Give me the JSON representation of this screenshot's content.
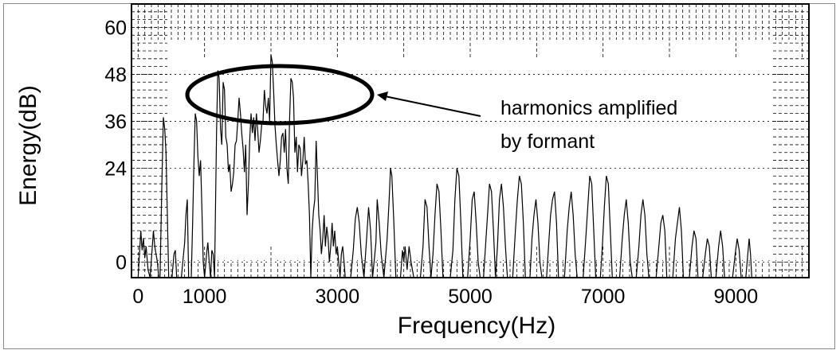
{
  "chart_data": {
    "type": "line",
    "xlabel": "Frequency(Hz)",
    "ylabel": "Energy(dB)",
    "xlim": [
      -100,
      10100
    ],
    "ylim": [
      -4,
      66
    ],
    "x_ticks": [
      0,
      1000,
      3000,
      5000,
      7000,
      9000
    ],
    "x_tick_labels": [
      "0",
      "1000",
      "3000",
      "5000",
      "7000",
      "9000"
    ],
    "y_ticks": [
      0,
      24,
      36,
      48,
      60
    ],
    "y_tick_labels": [
      "0",
      "24",
      "36",
      "48",
      "60"
    ],
    "grid": "partial dashed ticks",
    "annotation": {
      "lines": [
        "harmonics amplified",
        "by formant"
      ],
      "points_to": "formant harmonic peaks near 48 dB"
    },
    "series": [
      {
        "values": [
          [
            0,
            -4
          ],
          [
            20,
            2
          ],
          [
            40,
            8
          ],
          [
            60,
            3
          ],
          [
            80,
            6
          ],
          [
            100,
            1
          ],
          [
            120,
            4
          ],
          [
            150,
            -2
          ],
          [
            180,
            -4
          ],
          [
            210,
            3
          ],
          [
            230,
            8
          ],
          [
            250,
            4
          ],
          [
            270,
            2
          ],
          [
            290,
            0
          ],
          [
            310,
            -4
          ],
          [
            330,
            -4
          ],
          [
            360,
            22
          ],
          [
            380,
            37
          ],
          [
            400,
            34
          ],
          [
            420,
            28
          ],
          [
            440,
            12
          ],
          [
            460,
            -4
          ],
          [
            510,
            -4
          ],
          [
            540,
            2
          ],
          [
            560,
            3
          ],
          [
            580,
            -4
          ],
          [
            650,
            -4
          ],
          [
            700,
            5
          ],
          [
            720,
            12
          ],
          [
            740,
            16
          ],
          [
            760,
            -4
          ],
          [
            800,
            -4
          ],
          [
            820,
            10
          ],
          [
            840,
            25
          ],
          [
            860,
            38
          ],
          [
            880,
            36
          ],
          [
            900,
            27
          ],
          [
            920,
            22
          ],
          [
            940,
            26
          ],
          [
            960,
            14
          ],
          [
            980,
            0
          ],
          [
            1000,
            -4
          ],
          [
            1030,
            2
          ],
          [
            1050,
            5
          ],
          [
            1070,
            0
          ],
          [
            1090,
            -4
          ],
          [
            1110,
            3
          ],
          [
            1130,
            2
          ],
          [
            1150,
            -4
          ],
          [
            1160,
            8
          ],
          [
            1180,
            33
          ],
          [
            1200,
            49
          ],
          [
            1220,
            47
          ],
          [
            1240,
            34
          ],
          [
            1260,
            30
          ],
          [
            1280,
            46
          ],
          [
            1300,
            44
          ],
          [
            1320,
            32
          ],
          [
            1340,
            30
          ],
          [
            1360,
            23
          ],
          [
            1380,
            25
          ],
          [
            1400,
            18
          ],
          [
            1420,
            20
          ],
          [
            1440,
            23
          ],
          [
            1460,
            30
          ],
          [
            1480,
            31
          ],
          [
            1500,
            36
          ],
          [
            1520,
            42
          ],
          [
            1540,
            38
          ],
          [
            1560,
            33
          ],
          [
            1580,
            29
          ],
          [
            1600,
            23
          ],
          [
            1620,
            30
          ],
          [
            1640,
            12
          ],
          [
            1660,
            20
          ],
          [
            1680,
            31
          ],
          [
            1700,
            38
          ],
          [
            1720,
            33
          ],
          [
            1740,
            37
          ],
          [
            1760,
            31
          ],
          [
            1780,
            38
          ],
          [
            1800,
            34
          ],
          [
            1820,
            28
          ],
          [
            1840,
            31
          ],
          [
            1860,
            35
          ],
          [
            1880,
            36
          ],
          [
            1900,
            44
          ],
          [
            1920,
            40
          ],
          [
            1940,
            38
          ],
          [
            1960,
            42
          ],
          [
            1980,
            36
          ],
          [
            2000,
            53
          ],
          [
            2020,
            51
          ],
          [
            2040,
            44
          ],
          [
            2060,
            35
          ],
          [
            2080,
            30
          ],
          [
            2100,
            26
          ],
          [
            2120,
            22
          ],
          [
            2140,
            26
          ],
          [
            2160,
            32
          ],
          [
            2180,
            33
          ],
          [
            2200,
            28
          ],
          [
            2220,
            34
          ],
          [
            2240,
            24
          ],
          [
            2260,
            20
          ],
          [
            2280,
            36
          ],
          [
            2300,
            47
          ],
          [
            2320,
            46
          ],
          [
            2340,
            42
          ],
          [
            2360,
            28
          ],
          [
            2380,
            32
          ],
          [
            2400,
            23
          ],
          [
            2420,
            30
          ],
          [
            2440,
            29
          ],
          [
            2460,
            22
          ],
          [
            2480,
            26
          ],
          [
            2500,
            32
          ],
          [
            2520,
            25
          ],
          [
            2540,
            26
          ],
          [
            2560,
            20
          ],
          [
            2580,
            12
          ],
          [
            2600,
            -4
          ],
          [
            2620,
            8
          ],
          [
            2640,
            13
          ],
          [
            2660,
            16
          ],
          [
            2680,
            31
          ],
          [
            2700,
            22
          ],
          [
            2720,
            12
          ],
          [
            2740,
            8
          ],
          [
            2760,
            2
          ],
          [
            2780,
            6
          ],
          [
            2800,
            12
          ],
          [
            2820,
            4
          ],
          [
            2840,
            9
          ],
          [
            2860,
            6
          ],
          [
            2880,
            0
          ],
          [
            2900,
            4
          ],
          [
            2920,
            10
          ],
          [
            2940,
            4
          ],
          [
            2960,
            8
          ],
          [
            2980,
            2
          ],
          [
            3000,
            4
          ],
          [
            3020,
            0
          ],
          [
            3040,
            -4
          ],
          [
            3060,
            2
          ],
          [
            3080,
            4
          ],
          [
            3100,
            0
          ],
          [
            3120,
            -4
          ],
          [
            3200,
            -4
          ],
          [
            3240,
            3
          ],
          [
            3270,
            11
          ],
          [
            3300,
            14
          ],
          [
            3330,
            10
          ],
          [
            3360,
            2
          ],
          [
            3400,
            -4
          ],
          [
            3440,
            6
          ],
          [
            3470,
            14
          ],
          [
            3500,
            8
          ],
          [
            3530,
            -4
          ],
          [
            3580,
            5
          ],
          [
            3600,
            16
          ],
          [
            3630,
            10
          ],
          [
            3660,
            2
          ],
          [
            3700,
            -4
          ],
          [
            3750,
            6
          ],
          [
            3780,
            16
          ],
          [
            3800,
            24
          ],
          [
            3820,
            22
          ],
          [
            3850,
            10
          ],
          [
            3880,
            -4
          ],
          [
            3950,
            -4
          ],
          [
            3980,
            3
          ],
          [
            4000,
            0
          ],
          [
            4020,
            4
          ],
          [
            4050,
            -2
          ],
          [
            4080,
            4
          ],
          [
            4110,
            0
          ],
          [
            4150,
            -4
          ],
          [
            4250,
            -4
          ],
          [
            4290,
            4
          ],
          [
            4320,
            16
          ],
          [
            4350,
            14
          ],
          [
            4380,
            4
          ],
          [
            4410,
            -4
          ],
          [
            4440,
            2
          ],
          [
            4470,
            12
          ],
          [
            4500,
            20
          ],
          [
            4530,
            18
          ],
          [
            4560,
            8
          ],
          [
            4590,
            -4
          ],
          [
            4700,
            -4
          ],
          [
            4740,
            3
          ],
          [
            4770,
            16
          ],
          [
            4800,
            24
          ],
          [
            4830,
            22
          ],
          [
            4860,
            10
          ],
          [
            4890,
            -4
          ],
          [
            4960,
            -4
          ],
          [
            5000,
            6
          ],
          [
            5030,
            16
          ],
          [
            5060,
            18
          ],
          [
            5090,
            10
          ],
          [
            5120,
            0
          ],
          [
            5150,
            -4
          ],
          [
            5200,
            -4
          ],
          [
            5230,
            4
          ],
          [
            5260,
            12
          ],
          [
            5290,
            20
          ],
          [
            5320,
            18
          ],
          [
            5350,
            8
          ],
          [
            5380,
            -4
          ],
          [
            5410,
            4
          ],
          [
            5440,
            16
          ],
          [
            5470,
            20
          ],
          [
            5500,
            14
          ],
          [
            5530,
            4
          ],
          [
            5560,
            -4
          ],
          [
            5640,
            -4
          ],
          [
            5680,
            8
          ],
          [
            5710,
            16
          ],
          [
            5740,
            22
          ],
          [
            5770,
            20
          ],
          [
            5800,
            10
          ],
          [
            5830,
            -4
          ],
          [
            5900,
            -4
          ],
          [
            5930,
            6
          ],
          [
            5960,
            12
          ],
          [
            5990,
            16
          ],
          [
            6020,
            10
          ],
          [
            6050,
            0
          ],
          [
            6080,
            -4
          ],
          [
            6150,
            -4
          ],
          [
            6180,
            4
          ],
          [
            6210,
            12
          ],
          [
            6240,
            16
          ],
          [
            6270,
            18
          ],
          [
            6300,
            10
          ],
          [
            6330,
            -4
          ],
          [
            6420,
            -4
          ],
          [
            6460,
            8
          ],
          [
            6490,
            14
          ],
          [
            6520,
            18
          ],
          [
            6550,
            12
          ],
          [
            6580,
            2
          ],
          [
            6610,
            -4
          ],
          [
            6700,
            -4
          ],
          [
            6740,
            6
          ],
          [
            6770,
            14
          ],
          [
            6800,
            22
          ],
          [
            6830,
            20
          ],
          [
            6860,
            8
          ],
          [
            6890,
            -4
          ],
          [
            6960,
            -4
          ],
          [
            6990,
            4
          ],
          [
            7020,
            14
          ],
          [
            7050,
            22
          ],
          [
            7080,
            20
          ],
          [
            7110,
            8
          ],
          [
            7140,
            -4
          ],
          [
            7250,
            -4
          ],
          [
            7290,
            6
          ],
          [
            7320,
            12
          ],
          [
            7350,
            16
          ],
          [
            7380,
            10
          ],
          [
            7410,
            0
          ],
          [
            7440,
            -4
          ],
          [
            7500,
            -4
          ],
          [
            7540,
            4
          ],
          [
            7570,
            12
          ],
          [
            7600,
            16
          ],
          [
            7630,
            12
          ],
          [
            7660,
            2
          ],
          [
            7690,
            -4
          ],
          [
            7800,
            -4
          ],
          [
            7840,
            4
          ],
          [
            7870,
            10
          ],
          [
            7900,
            12
          ],
          [
            7930,
            8
          ],
          [
            7960,
            -4
          ],
          [
            8050,
            -4
          ],
          [
            8090,
            6
          ],
          [
            8120,
            10
          ],
          [
            8150,
            14
          ],
          [
            8180,
            8
          ],
          [
            8210,
            -4
          ],
          [
            8300,
            -4
          ],
          [
            8340,
            4
          ],
          [
            8370,
            8
          ],
          [
            8400,
            6
          ],
          [
            8430,
            -4
          ],
          [
            8500,
            -4
          ],
          [
            8540,
            2
          ],
          [
            8570,
            6
          ],
          [
            8600,
            4
          ],
          [
            8630,
            -4
          ],
          [
            8700,
            -4
          ],
          [
            8740,
            4
          ],
          [
            8770,
            8
          ],
          [
            8800,
            4
          ],
          [
            8830,
            -4
          ],
          [
            8950,
            -4
          ],
          [
            8990,
            2
          ],
          [
            9020,
            6
          ],
          [
            9050,
            3
          ],
          [
            9080,
            -4
          ],
          [
            9150,
            -4
          ],
          [
            9180,
            2
          ],
          [
            9200,
            6
          ],
          [
            9220,
            2
          ],
          [
            9240,
            -4
          ],
          [
            10000,
            -4
          ]
        ]
      }
    ]
  }
}
